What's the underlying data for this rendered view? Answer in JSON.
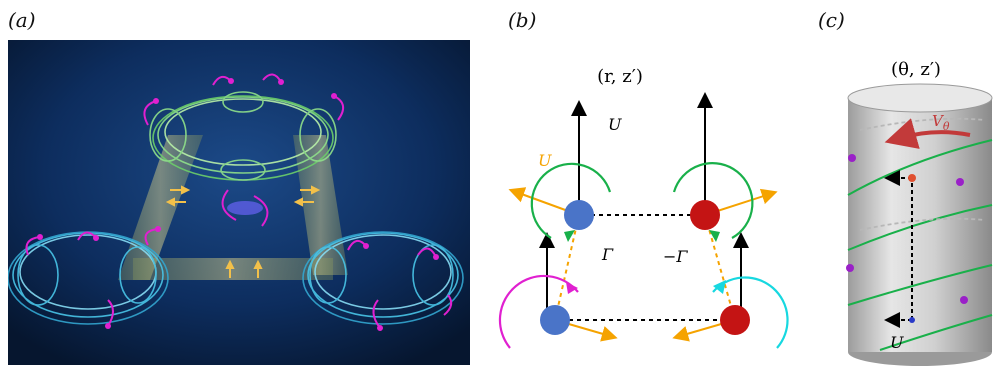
{
  "panels": {
    "a": {
      "label": "(a)"
    },
    "b": {
      "label": "(b)",
      "coords": "(r, z′)",
      "u_black": "U",
      "u_orange": "U",
      "gamma_pos": "Γ",
      "gamma_neg": "−Γ"
    },
    "c": {
      "label": "(c)",
      "coords": "(θ, z′)",
      "v_theta": "V",
      "v_theta_sub": "θ",
      "u_label": "U"
    }
  },
  "colors": {
    "background_dark": "#0b2a55",
    "cyan_rings": "#49c5e8",
    "green_rings": "#8fe08a",
    "magenta_arrows": "#e020d0",
    "blue_vortex": "#4a74c8",
    "red_vortex": "#c41414",
    "orange_arrow": "#f5a300",
    "green_arc": "#19b04a",
    "cyan_arc": "#17d8e0",
    "dark_red_arrow": "#c23a3a"
  }
}
